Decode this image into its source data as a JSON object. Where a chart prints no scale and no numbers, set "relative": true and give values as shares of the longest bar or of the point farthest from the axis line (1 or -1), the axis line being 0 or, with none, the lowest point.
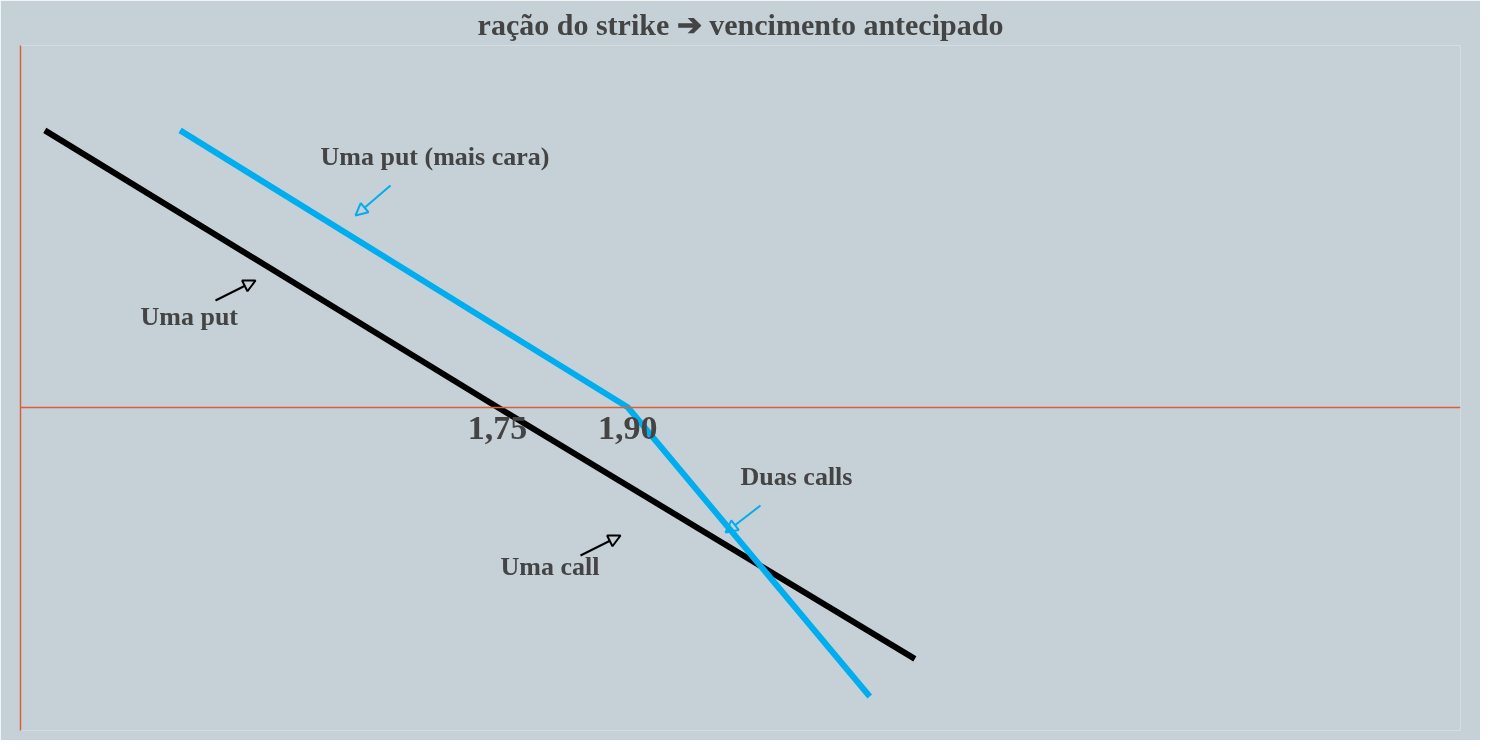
{
  "chart_data": {
    "type": "line",
    "title": "ração do strike ➔ vencimento antecipado",
    "relative": true,
    "xlim": [
      1.2,
      2.86
    ],
    "xticks": [
      {
        "value": 1.75,
        "label": "1,75"
      },
      {
        "value": 1.9,
        "label": "1,90"
      }
    ],
    "grid": false,
    "tick_labels": "x",
    "series": [
      {
        "color": "#000000",
        "x": [
          1.228,
          1.75,
          2.231
        ],
        "values": [
          0.957,
          0,
          -0.87
        ]
      },
      {
        "color": "#00aeef",
        "x": [
          1.384,
          1.9,
          2.179
        ],
        "values": [
          0.957,
          0,
          -1
        ]
      }
    ],
    "annotations": [
      "Uma put (mais cara)",
      "Uma put",
      "Uma call",
      "Duas calls"
    ]
  }
}
